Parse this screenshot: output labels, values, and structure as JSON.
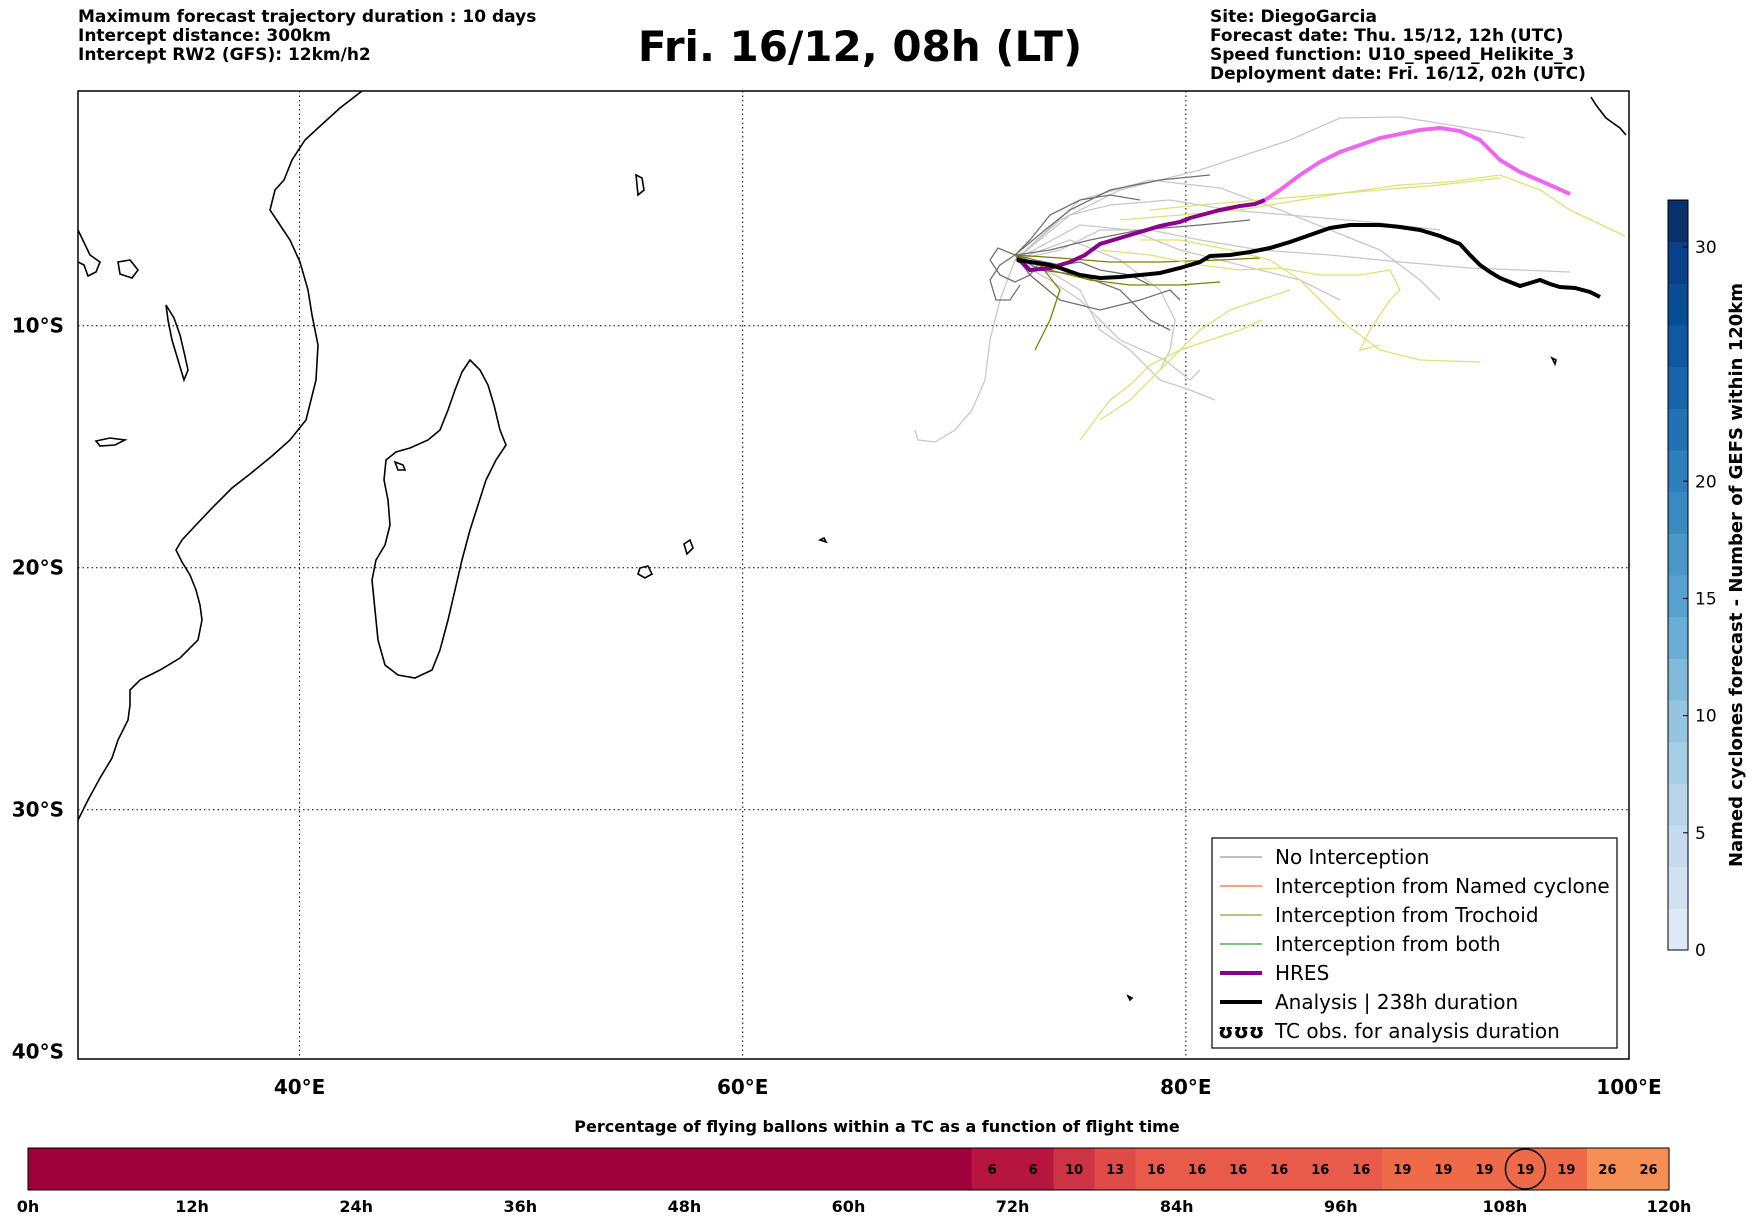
{
  "header_left": {
    "line1": "Maximum forecast trajectory duration : 10 days",
    "line2": "Intercept distance: 300km",
    "line3": "Intercept RW2 (GFS):  12km/h2"
  },
  "title": "Fri. 16/12, 08h (LT)",
  "header_right": {
    "line1": "Site: DiegoGarcia",
    "line2": "Forecast date: Thu. 15/12, 12h (UTC)",
    "line3": "Speed function: U10_speed_Helikite_3",
    "line4": "Deployment date: Fri. 16/12, 02h (UTC)"
  },
  "map": {
    "lon_labels": [
      "40°E",
      "60°E",
      "80°E",
      "100°E"
    ],
    "lat_labels": [
      "10°S",
      "20°S",
      "30°S",
      "40°S"
    ],
    "lon_range": [
      30,
      100
    ],
    "lat_range": [
      -40.3,
      -0.3
    ]
  },
  "legend": {
    "items": [
      {
        "label": "No Interception",
        "color": "#808080",
        "width": 1
      },
      {
        "label": "Interception from Named cyclone",
        "color": "#ff4500",
        "width": 1
      },
      {
        "label": "Interception from Trochoid",
        "color": "#808000",
        "width": 1
      },
      {
        "label": "Interception from both",
        "color": "#008000",
        "width": 1
      },
      {
        "label": "HRES",
        "color": "#8b008b",
        "width": 4
      },
      {
        "label": "Analysis | 238h duration",
        "color": "#000000",
        "width": 4
      },
      {
        "label": "TC obs. for analysis duration",
        "symbol": "ʊʊʊ"
      }
    ]
  },
  "colorbar": {
    "label": "Named cyclones forecast - Number of GEFS within 120km",
    "ticks": [
      "0",
      "5",
      "10",
      "15",
      "20",
      "30"
    ],
    "colors": [
      "#deebf7",
      "#d0e1f2",
      "#c6dbef",
      "#b7d4ea",
      "#a6cee4",
      "#94c4df",
      "#82badb",
      "#6aaed6",
      "#58a1cf",
      "#4a98c9",
      "#3a8ac2",
      "#2e7ebc",
      "#2171b5",
      "#1764ab",
      "#0e59a2",
      "#084d96",
      "#08418a",
      "#08306b"
    ]
  },
  "timeline": {
    "title": "Percentage of flying ballons within a TC as a function of flight time",
    "hour_labels": [
      "0h",
      "12h",
      "24h",
      "36h",
      "48h",
      "60h",
      "72h",
      "84h",
      "96h",
      "108h",
      "120h"
    ],
    "cells": [
      "",
      "",
      "",
      "",
      "",
      "",
      "",
      "",
      "",
      "",
      "",
      "",
      "",
      "",
      "",
      "",
      "",
      "",
      "",
      "",
      "",
      "",
      "",
      "6",
      "6",
      "10",
      "13",
      "16",
      "16",
      "16",
      "16",
      "16",
      "16",
      "19",
      "19",
      "19",
      "19",
      "19",
      "26",
      "26"
    ],
    "cell_colors": [
      "#9e003a",
      "#9e003a",
      "#9e003a",
      "#9e003a",
      "#9e003a",
      "#9e003a",
      "#9e003a",
      "#9e003a",
      "#9e003a",
      "#9e003a",
      "#9e003a",
      "#9e003a",
      "#9e003a",
      "#9e003a",
      "#9e003a",
      "#9e003a",
      "#9e003a",
      "#9e003a",
      "#9e003a",
      "#9e003a",
      "#9e003a",
      "#9e003a",
      "#9e003a",
      "#b5153f",
      "#b5153f",
      "#cc3344",
      "#e04b48",
      "#e85a4a",
      "#e85a4a",
      "#e85a4a",
      "#e85a4a",
      "#e85a4a",
      "#e85a4a",
      "#ee6a48",
      "#ee6a48",
      "#ee6a48",
      "#ee6a48",
      "#ee6a48",
      "#f68f55",
      "#f68f55"
    ],
    "circled_index": 36
  }
}
